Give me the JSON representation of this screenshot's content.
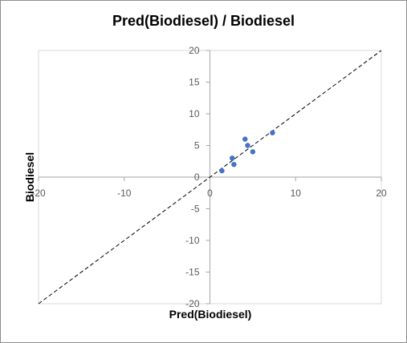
{
  "chart_data": {
    "type": "scatter",
    "title": "Pred(Biodiesel) / Biodiesel",
    "xlabel": "Pred(Biodiesel)",
    "ylabel": "Biodiesel",
    "xlim": [
      -20,
      20
    ],
    "ylim": [
      -20,
      20
    ],
    "x_ticks": [
      -20,
      -10,
      0,
      10,
      20
    ],
    "y_ticks": [
      -20,
      -15,
      -10,
      -5,
      0,
      5,
      10,
      15,
      20
    ],
    "grid": false,
    "legend": "none",
    "reference_line": {
      "style": "dashed",
      "slope": 1,
      "intercept": 0,
      "color": "#000000"
    },
    "series": [
      {
        "color": "#4472c4",
        "points": [
          {
            "x": 1.4,
            "y": 1.0
          },
          {
            "x": 2.6,
            "y": 3.0
          },
          {
            "x": 2.8,
            "y": 2.0
          },
          {
            "x": 4.1,
            "y": 6.0
          },
          {
            "x": 4.4,
            "y": 5.0
          },
          {
            "x": 5.0,
            "y": 4.0
          },
          {
            "x": 7.3,
            "y": 7.0
          }
        ]
      }
    ]
  }
}
